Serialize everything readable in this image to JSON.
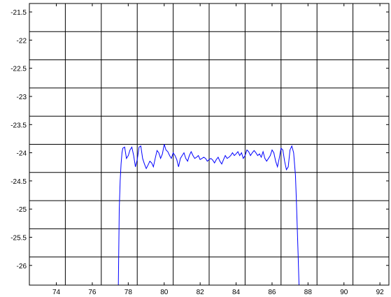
{
  "chart_data": {
    "type": "line",
    "title": "",
    "xlabel": "",
    "ylabel": "",
    "xlim": [
      72.5,
      92.5
    ],
    "ylim": [
      -26.35,
      -21.35
    ],
    "grid": true,
    "x_tick_labels": [
      "74",
      "76",
      "78",
      "80",
      "82",
      "84",
      "86",
      "88",
      "90",
      "92"
    ],
    "x_tick_values": [
      74,
      76,
      78,
      80,
      82,
      84,
      86,
      88,
      90,
      92
    ],
    "y_tick_labels": [
      "-21.5",
      "-22",
      "-22.5",
      "-23",
      "-23.5",
      "-24",
      "-24.5",
      "-25",
      "-25.5",
      "-26"
    ],
    "y_tick_values": [
      -21.5,
      -22,
      -22.5,
      -23,
      -23.5,
      -24,
      -24.5,
      -25,
      -25.5,
      -26
    ],
    "gridlines_x": [
      74.5,
      76.5,
      78.5,
      80.5,
      82.5,
      84.5,
      86.5,
      88.5,
      90.5
    ],
    "gridlines_y": [
      -21.85,
      -22.35,
      -22.85,
      -23.35,
      -23.85,
      -24.35,
      -24.85,
      -25.35,
      -25.85
    ],
    "line_color": "#0000ff",
    "series": [
      {
        "x": [
          77.45,
          77.5,
          77.55,
          77.6,
          77.65,
          77.7,
          77.8,
          77.9,
          78.0,
          78.1,
          78.2,
          78.3,
          78.4,
          78.5,
          78.6,
          78.7,
          78.8,
          78.9,
          79.0,
          79.1,
          79.2,
          79.3,
          79.4,
          79.5,
          79.6,
          79.7,
          79.8,
          79.9,
          80.0,
          80.1,
          80.2,
          80.3,
          80.4,
          80.5,
          80.6,
          80.7,
          80.8,
          80.9,
          81.0,
          81.1,
          81.2,
          81.3,
          81.4,
          81.5,
          81.6,
          81.7,
          81.8,
          81.9,
          82.0,
          82.1,
          82.2,
          82.3,
          82.4,
          82.5,
          82.6,
          82.7,
          82.8,
          82.9,
          83.0,
          83.1,
          83.2,
          83.3,
          83.4,
          83.5,
          83.6,
          83.7,
          83.8,
          83.9,
          84.0,
          84.1,
          84.2,
          84.3,
          84.4,
          84.5,
          84.6,
          84.7,
          84.8,
          84.9,
          85.0,
          85.1,
          85.2,
          85.3,
          85.4,
          85.5,
          85.6,
          85.7,
          85.8,
          85.9,
          86.0,
          86.1,
          86.2,
          86.3,
          86.4,
          86.5,
          86.6,
          86.7,
          86.8,
          86.9,
          87.0,
          87.1,
          87.2,
          87.3,
          87.35,
          87.4,
          87.45,
          87.5
        ],
        "y": [
          -26.35,
          -25.0,
          -24.5,
          -24.2,
          -24.0,
          -23.92,
          -23.9,
          -24.1,
          -24.05,
          -23.95,
          -23.9,
          -24.05,
          -24.25,
          -24.12,
          -23.9,
          -23.88,
          -24.1,
          -24.2,
          -24.28,
          -24.22,
          -24.15,
          -24.18,
          -24.25,
          -24.1,
          -23.96,
          -24.0,
          -24.1,
          -24.02,
          -23.85,
          -23.95,
          -23.98,
          -24.05,
          -24.1,
          -24.0,
          -24.05,
          -24.12,
          -24.25,
          -24.1,
          -24.05,
          -24.0,
          -24.1,
          -24.15,
          -24.05,
          -23.98,
          -24.05,
          -24.1,
          -24.08,
          -24.05,
          -24.12,
          -24.1,
          -24.08,
          -24.1,
          -24.15,
          -24.12,
          -24.1,
          -24.13,
          -24.18,
          -24.12,
          -24.08,
          -24.15,
          -24.2,
          -24.12,
          -24.05,
          -24.1,
          -24.08,
          -24.05,
          -24.0,
          -24.05,
          -24.02,
          -23.98,
          -24.05,
          -24.0,
          -24.1,
          -24.05,
          -23.95,
          -23.98,
          -24.05,
          -24.0,
          -23.96,
          -24.0,
          -24.05,
          -24.02,
          -24.08,
          -23.98,
          -24.1,
          -24.15,
          -24.1,
          -24.05,
          -23.95,
          -24.0,
          -24.15,
          -24.25,
          -24.1,
          -23.92,
          -23.95,
          -24.15,
          -24.3,
          -24.25,
          -23.95,
          -23.88,
          -24.0,
          -24.4,
          -24.8,
          -25.3,
          -25.8,
          -26.35
        ]
      }
    ]
  }
}
